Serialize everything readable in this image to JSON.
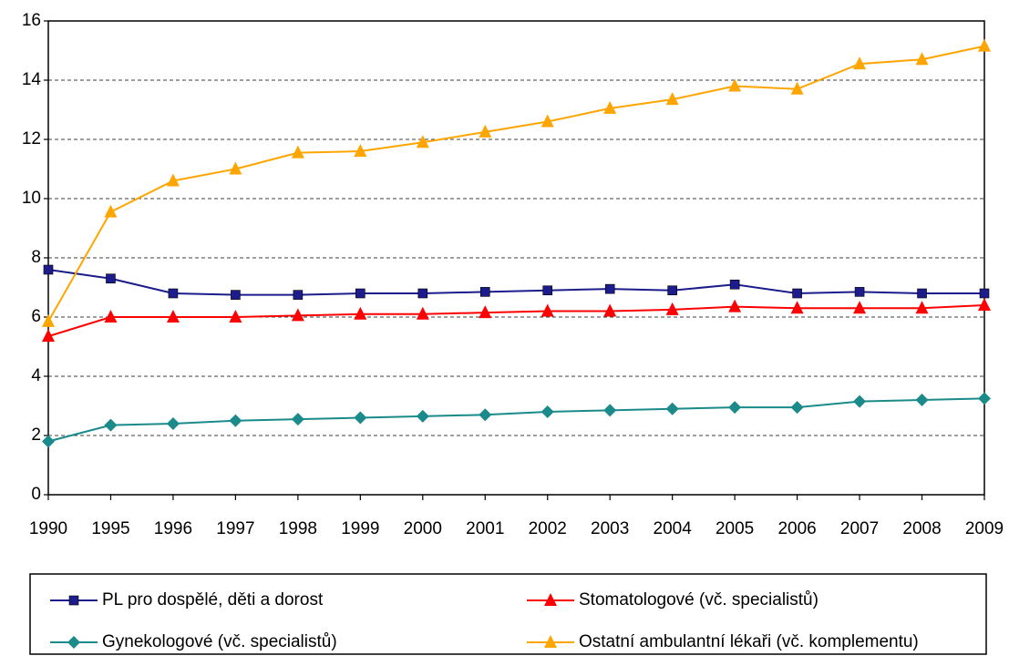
{
  "chart_data": {
    "type": "line",
    "categories": [
      "1990",
      "1995",
      "1996",
      "1997",
      "1998",
      "1999",
      "2000",
      "2001",
      "2002",
      "2003",
      "2004",
      "2005",
      "2006",
      "2007",
      "2008",
      "2009"
    ],
    "series": [
      {
        "name": "PL pro dospělé, děti a dorost",
        "color": "#1c1c8c",
        "marker": "square",
        "values": [
          7.6,
          7.3,
          6.8,
          6.75,
          6.75,
          6.8,
          6.8,
          6.85,
          6.9,
          6.95,
          6.9,
          7.1,
          6.8,
          6.85,
          6.8,
          6.8
        ]
      },
      {
        "name": "Stomatologové (vč. specialistů)",
        "color": "#ff0000",
        "marker": "triangle",
        "values": [
          5.35,
          6.0,
          6.0,
          6.0,
          6.05,
          6.1,
          6.1,
          6.15,
          6.2,
          6.2,
          6.25,
          6.35,
          6.3,
          6.3,
          6.3,
          6.4
        ]
      },
      {
        "name": "Gynekologové (vč. specialistů)",
        "color": "#1a8a8a",
        "marker": "diamond",
        "values": [
          1.8,
          2.35,
          2.4,
          2.5,
          2.55,
          2.6,
          2.65,
          2.7,
          2.8,
          2.85,
          2.9,
          2.95,
          2.95,
          3.15,
          3.2,
          3.25
        ]
      },
      {
        "name": "Ostatní ambulantní lékaři (vč. komplementu)",
        "color": "#ffa500",
        "marker": "triangle",
        "values": [
          5.85,
          9.55,
          10.6,
          11.0,
          11.55,
          11.6,
          11.9,
          12.25,
          12.6,
          13.05,
          13.35,
          13.8,
          13.7,
          14.55,
          14.7,
          15.15
        ]
      }
    ],
    "ylim": [
      0,
      16
    ],
    "yticks": [
      0,
      2,
      4,
      6,
      8,
      10,
      12,
      14,
      16
    ],
    "grid": true,
    "legend": "bottom"
  }
}
